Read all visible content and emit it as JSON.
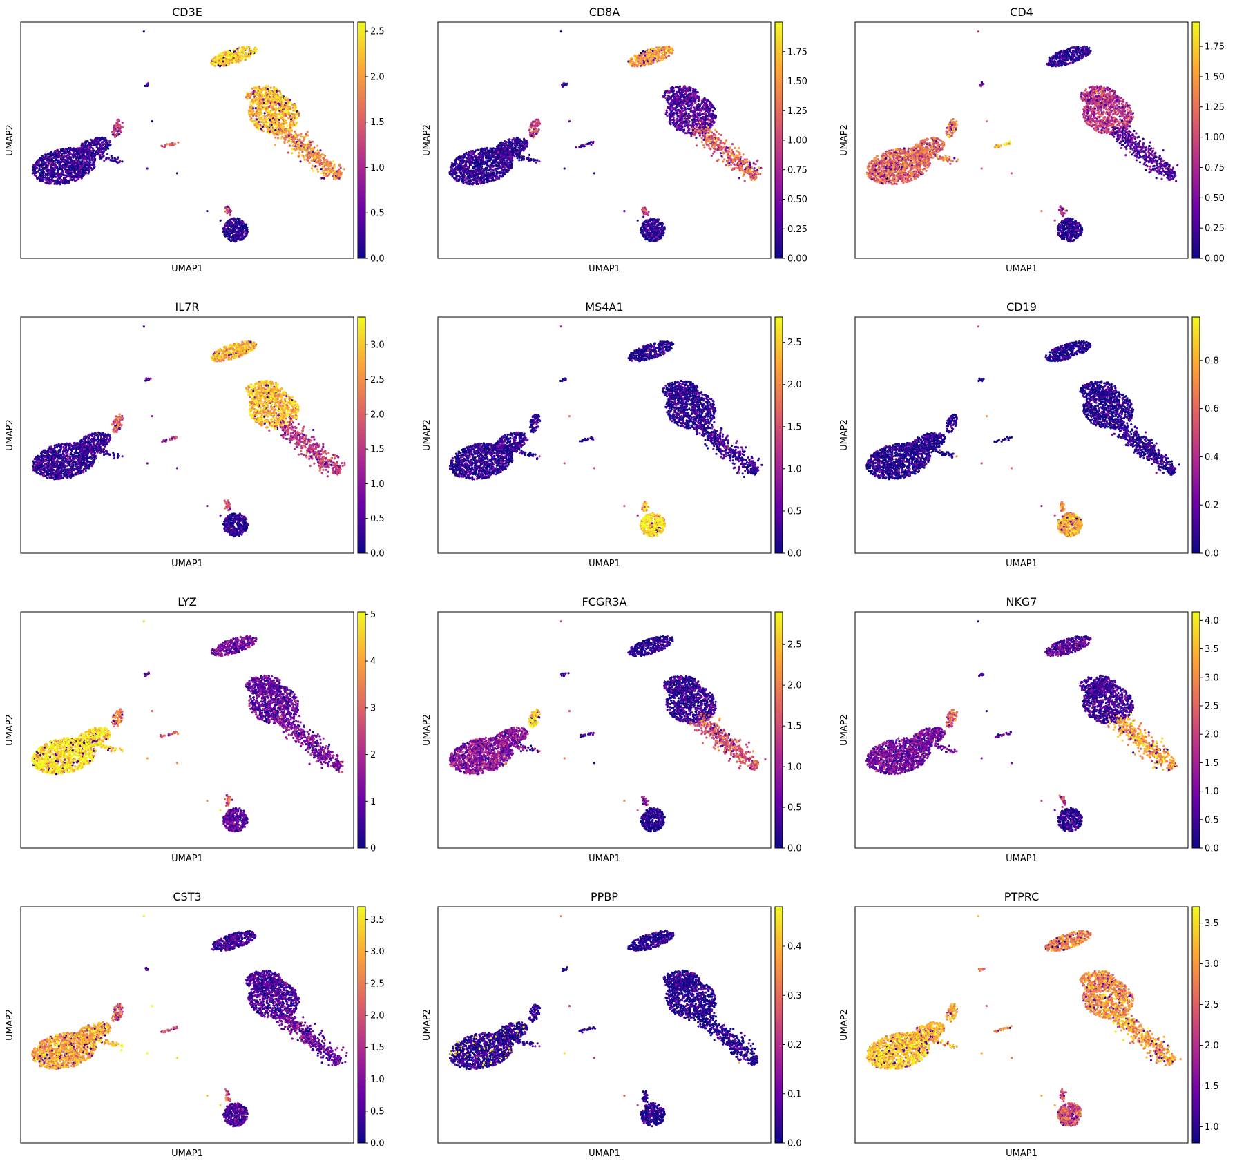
{
  "figure": {
    "xlabel": "UMAP1",
    "ylabel": "UMAP2",
    "colormap": "plasma",
    "colormap_stops": [
      "#0d0887",
      "#6a00a8",
      "#b12a90",
      "#e16462",
      "#fca636",
      "#f0f921"
    ]
  },
  "chart_data": [
    {
      "type": "scatter",
      "title": "CD3E",
      "xlabel": "UMAP1",
      "ylabel": "UMAP2",
      "colorbar_range": [
        0,
        2.6
      ],
      "colorbar_ticks": [
        "0.0",
        "0.5",
        "1.0",
        "1.5",
        "2.0",
        "2.5"
      ],
      "cluster_values": {
        "mono": 0.2,
        "monoTail": 0.3,
        "monoHook": 1.3,
        "cd8top": 2.3,
        "tmain": 2.2,
        "tdiag": 1.9,
        "bcell": 0.05,
        "bstalk": 1.2,
        "mk1": 1.5,
        "mk2": 0.3,
        "iso": 0.2
      }
    },
    {
      "type": "scatter",
      "title": "CD8A",
      "xlabel": "UMAP1",
      "ylabel": "UMAP2",
      "colorbar_range": [
        0,
        2.0
      ],
      "colorbar_ticks": [
        "0.00",
        "0.25",
        "0.50",
        "0.75",
        "1.00",
        "1.25",
        "1.50",
        "1.75"
      ],
      "cluster_values": {
        "mono": 0.1,
        "monoTail": 0.1,
        "monoHook": 1.0,
        "cd8top": 1.55,
        "tmain": 0.3,
        "tdiag": 1.2,
        "bcell": 0.05,
        "bstalk": 1.0,
        "mk1": 0.2,
        "mk2": 0.1,
        "iso": 0.1
      }
    },
    {
      "type": "scatter",
      "title": "CD4",
      "xlabel": "UMAP1",
      "ylabel": "UMAP2",
      "colorbar_range": [
        0,
        1.95
      ],
      "colorbar_ticks": [
        "0.00",
        "0.25",
        "0.50",
        "0.75",
        "1.00",
        "1.25",
        "1.50",
        "1.75"
      ],
      "cluster_values": {
        "mono": 1.2,
        "monoTail": 1.3,
        "monoHook": 1.3,
        "cd8top": 0.1,
        "tmain": 0.9,
        "tdiag": 0.3,
        "bcell": 0.05,
        "bstalk": 0.9,
        "mk1": 1.6,
        "mk2": 0.6,
        "iso": 1.0
      }
    },
    {
      "type": "scatter",
      "title": "IL7R",
      "xlabel": "UMAP1",
      "ylabel": "UMAP2",
      "colorbar_range": [
        0,
        3.4
      ],
      "colorbar_ticks": [
        "0.0",
        "0.5",
        "1.0",
        "1.5",
        "2.0",
        "2.5",
        "3.0"
      ],
      "cluster_values": {
        "mono": 0.2,
        "monoTail": 0.3,
        "monoHook": 1.9,
        "cd8top": 2.8,
        "tmain": 2.9,
        "tdiag": 1.6,
        "bcell": 0.1,
        "bstalk": 1.8,
        "mk1": 1.6,
        "mk2": 0.4,
        "iso": 0.8
      }
    },
    {
      "type": "scatter",
      "title": "MS4A1",
      "xlabel": "UMAP1",
      "ylabel": "UMAP2",
      "colorbar_range": [
        0,
        2.8
      ],
      "colorbar_ticks": [
        "0.0",
        "0.5",
        "1.0",
        "1.5",
        "2.0",
        "2.5"
      ],
      "cluster_values": {
        "mono": 0.1,
        "monoTail": 0.1,
        "monoHook": 0.1,
        "cd8top": 0.05,
        "tmain": 0.1,
        "tdiag": 0.2,
        "bcell": 2.7,
        "bstalk": 2.4,
        "mk1": 0.1,
        "mk2": 0.1,
        "iso": 1.5
      }
    },
    {
      "type": "scatter",
      "title": "CD19",
      "xlabel": "UMAP1",
      "ylabel": "UMAP2",
      "colorbar_range": [
        0,
        0.98
      ],
      "colorbar_ticks": [
        "0.0",
        "0.2",
        "0.4",
        "0.6",
        "0.8"
      ],
      "cluster_values": {
        "mono": 0.02,
        "monoTail": 0.02,
        "monoHook": 0.02,
        "cd8top": 0.01,
        "tmain": 0.02,
        "tdiag": 0.02,
        "bcell": 0.8,
        "bstalk": 0.7,
        "mk1": 0.02,
        "mk2": 0.02,
        "iso": 0.5
      }
    },
    {
      "type": "scatter",
      "title": "LYZ",
      "xlabel": "UMAP1",
      "ylabel": "UMAP2",
      "colorbar_range": [
        0,
        5.05
      ],
      "colorbar_ticks": [
        "0",
        "1",
        "2",
        "3",
        "4",
        "5"
      ],
      "cluster_values": {
        "mono": 4.8,
        "monoTail": 4.6,
        "monoHook": 3.5,
        "cd8top": 1.2,
        "tmain": 1.0,
        "tdiag": 1.3,
        "bcell": 1.0,
        "bstalk": 3.0,
        "mk1": 2.8,
        "mk2": 0.8,
        "iso": 4.0
      }
    },
    {
      "type": "scatter",
      "title": "FCGR3A",
      "xlabel": "UMAP1",
      "ylabel": "UMAP2",
      "colorbar_range": [
        0,
        2.9
      ],
      "colorbar_ticks": [
        "0.0",
        "0.5",
        "1.0",
        "1.5",
        "2.0",
        "2.5"
      ],
      "cluster_values": {
        "mono": 0.9,
        "monoTail": 0.7,
        "monoHook": 2.7,
        "cd8top": 0.1,
        "tmain": 0.2,
        "tdiag": 1.6,
        "bcell": 0.1,
        "bstalk": 1.0,
        "mk1": 0.3,
        "mk2": 0.2,
        "iso": 1.8
      }
    },
    {
      "type": "scatter",
      "title": "NKG7",
      "xlabel": "UMAP1",
      "ylabel": "UMAP2",
      "colorbar_range": [
        0,
        4.15
      ],
      "colorbar_ticks": [
        "0.0",
        "0.5",
        "1.0",
        "1.5",
        "2.0",
        "2.5",
        "3.0",
        "3.5",
        "4.0"
      ],
      "cluster_values": {
        "mono": 1.0,
        "monoTail": 0.8,
        "monoHook": 2.5,
        "cd8top": 0.7,
        "tmain": 0.4,
        "tdiag": 3.2,
        "bcell": 0.2,
        "bstalk": 2.0,
        "mk1": 0.6,
        "mk2": 0.3,
        "iso": 1.0
      }
    },
    {
      "type": "scatter",
      "title": "CST3",
      "xlabel": "UMAP1",
      "ylabel": "UMAP2",
      "colorbar_range": [
        0,
        3.7
      ],
      "colorbar_ticks": [
        "0.0",
        "0.5",
        "1.0",
        "1.5",
        "2.0",
        "2.5",
        "3.0",
        "3.5"
      ],
      "cluster_values": {
        "mono": 2.9,
        "monoTail": 3.2,
        "monoHook": 2.3,
        "cd8top": 0.4,
        "tmain": 0.5,
        "tdiag": 0.8,
        "bcell": 0.5,
        "bstalk": 2.0,
        "mk1": 2.0,
        "mk2": 0.5,
        "iso": 3.2
      }
    },
    {
      "type": "scatter",
      "title": "PPBP",
      "xlabel": "UMAP1",
      "ylabel": "UMAP2",
      "colorbar_range": [
        0,
        0.48
      ],
      "colorbar_ticks": [
        "0.0",
        "0.1",
        "0.2",
        "0.3",
        "0.4"
      ],
      "cluster_values": {
        "mono": 0.02,
        "monoTail": 0.02,
        "monoHook": 0.02,
        "cd8top": 0.01,
        "tmain": 0.01,
        "tdiag": 0.01,
        "bcell": 0.01,
        "bstalk": 0.01,
        "mk1": 0.05,
        "mk2": 0.02,
        "iso": 0.3
      }
    },
    {
      "type": "scatter",
      "title": "PTPRC",
      "xlabel": "UMAP1",
      "ylabel": "UMAP2",
      "colorbar_range": [
        0.8,
        3.7
      ],
      "colorbar_ticks": [
        "1.0",
        "1.5",
        "2.0",
        "2.5",
        "3.0",
        "3.5"
      ],
      "cluster_values": {
        "mono": 3.3,
        "monoTail": 3.1,
        "monoHook": 3.2,
        "cd8top": 2.8,
        "tmain": 2.9,
        "tdiag": 3.0,
        "bcell": 2.4,
        "bstalk": 2.3,
        "mk1": 3.0,
        "mk2": 2.5,
        "iso": 3.0
      }
    }
  ]
}
